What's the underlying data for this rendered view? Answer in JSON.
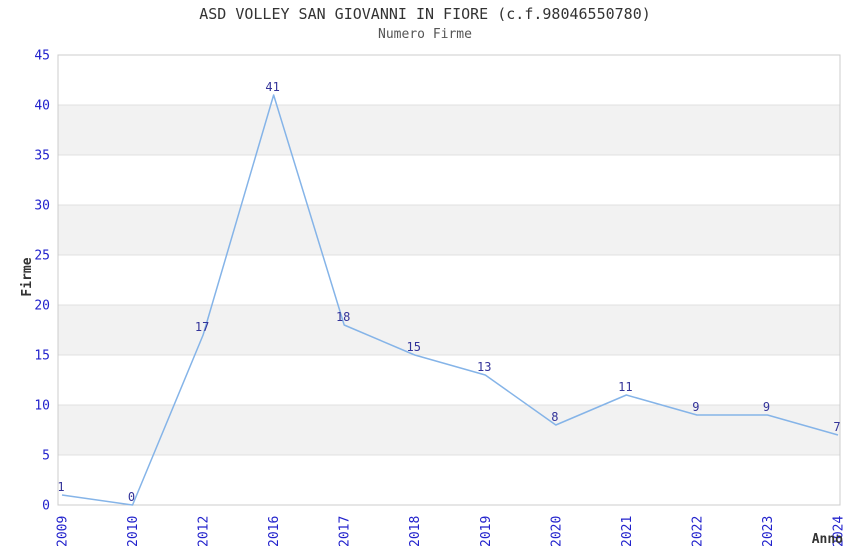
{
  "chart": {
    "title": "ASD VOLLEY SAN GIOVANNI IN FIORE (c.f.98046550780)",
    "subtitle": "Numero Firme"
  },
  "chart_data": {
    "type": "line",
    "title": "ASD VOLLEY SAN GIOVANNI IN FIORE (c.f.98046550780)",
    "subtitle": "Numero Firme",
    "categories": [
      "2009",
      "2010",
      "2012",
      "2016",
      "2017",
      "2018",
      "2019",
      "2020",
      "2021",
      "2022",
      "2023",
      "2024"
    ],
    "values": [
      1,
      0,
      17,
      41,
      18,
      15,
      13,
      8,
      11,
      9,
      9,
      7
    ],
    "xlabel": "Anno",
    "ylabel": "Firme",
    "ylim": [
      0,
      45
    ],
    "ytick_step": 5,
    "yticks": [
      0,
      5,
      10,
      15,
      20,
      25,
      30,
      35,
      40,
      45
    ],
    "grid": true,
    "legend": false,
    "band_fill": "alternating-horizontal",
    "colors": {
      "line": "#85b4e8",
      "tick_label": "#2222cc",
      "data_label": "#333399",
      "band": "#f2f2f2",
      "gridline": "#e0e0e0",
      "border": "#cccccc",
      "title": "#333333",
      "subtitle": "#555555",
      "axis_label": "#333333",
      "background": "#ffffff"
    }
  }
}
